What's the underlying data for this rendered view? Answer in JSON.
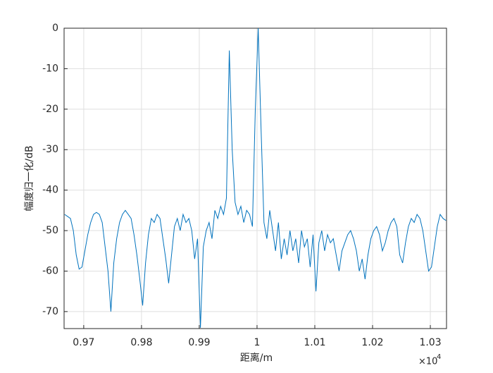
{
  "chart_data": {
    "type": "line",
    "xlabel": "距离/m",
    "ylabel": "幅度归一化/dB",
    "x_exponent": {
      "base": "×10",
      "power": "4"
    },
    "xlim": [
      9666,
      10328
    ],
    "ylim": [
      -74.2,
      0
    ],
    "xticks": [
      {
        "value": 9700,
        "label": "0.97"
      },
      {
        "value": 9800,
        "label": "0.98"
      },
      {
        "value": 9900,
        "label": "0.99"
      },
      {
        "value": 10000,
        "label": "1"
      },
      {
        "value": 10100,
        "label": "1.01"
      },
      {
        "value": 10200,
        "label": "1.02"
      },
      {
        "value": 10300,
        "label": "1.03"
      }
    ],
    "yticks": [
      0,
      -10,
      -20,
      -30,
      -40,
      -50,
      -60,
      -70
    ],
    "grid": true,
    "series": [
      {
        "color": "#0072bd",
        "x": [
          9667,
          9672,
          9677,
          9682,
          9687,
          9692,
          9697,
          9702,
          9707,
          9712,
          9717,
          9722,
          9727,
          9732,
          9737,
          9742,
          9747,
          9752,
          9757,
          9762,
          9767,
          9772,
          9777,
          9782,
          9787,
          9792,
          9797,
          9802,
          9807,
          9812,
          9817,
          9822,
          9827,
          9832,
          9837,
          9842,
          9847,
          9852,
          9857,
          9862,
          9867,
          9872,
          9877,
          9882,
          9887,
          9892,
          9897,
          9902,
          9907,
          9912,
          9917,
          9922,
          9927,
          9932,
          9937,
          9942,
          9947,
          9952,
          9957,
          9962,
          9967,
          9972,
          9977,
          9982,
          9987,
          9992,
          9997,
          10002,
          10007,
          10012,
          10017,
          10022,
          10027,
          10032,
          10037,
          10042,
          10047,
          10052,
          10057,
          10062,
          10067,
          10072,
          10077,
          10082,
          10087,
          10092,
          10097,
          10102,
          10107,
          10112,
          10117,
          10122,
          10127,
          10132,
          10137,
          10142,
          10147,
          10152,
          10157,
          10162,
          10167,
          10172,
          10177,
          10182,
          10187,
          10192,
          10197,
          10202,
          10207,
          10212,
          10217,
          10222,
          10227,
          10232,
          10237,
          10242,
          10247,
          10252,
          10257,
          10262,
          10267,
          10272,
          10277,
          10282,
          10287,
          10292,
          10297,
          10302,
          10307,
          10312,
          10317,
          10322,
          10327
        ],
        "values": [
          -46,
          -46.5,
          -47,
          -50,
          -56,
          -59.5,
          -59,
          -55,
          -51,
          -48,
          -46,
          -45.5,
          -46,
          -48,
          -54,
          -60,
          -70,
          -58,
          -52,
          -48,
          -46,
          -45,
          -46,
          -47,
          -51,
          -56,
          -62,
          -68.5,
          -58,
          -51,
          -47,
          -48,
          -46,
          -47,
          -52,
          -57,
          -63,
          -56,
          -49,
          -47,
          -50,
          -46,
          -48,
          -47,
          -50,
          -57,
          -52,
          -74,
          -54,
          -50,
          -48,
          -52,
          -45,
          -47,
          -44,
          -46,
          -42,
          -5.5,
          -30,
          -43,
          -46,
          -44,
          -48,
          -45,
          -46,
          -49,
          -20,
          0,
          -25,
          -48,
          -52,
          -45,
          -50,
          -55,
          -48,
          -57,
          -52,
          -56,
          -50,
          -55,
          -52,
          -58,
          -50,
          -54,
          -52,
          -59,
          -51,
          -65,
          -53,
          -50,
          -55,
          -51,
          -53,
          -52,
          -56,
          -60,
          -55,
          -53,
          -51,
          -50,
          -52,
          -55,
          -60,
          -57,
          -62,
          -56,
          -52,
          -50,
          -49,
          -51,
          -55,
          -53,
          -50,
          -48,
          -47,
          -49,
          -56,
          -58,
          -53,
          -49,
          -47,
          -48,
          -46,
          -47,
          -50,
          -55,
          -60,
          -59,
          -54,
          -49,
          -46,
          -47,
          -47.5
        ]
      }
    ]
  }
}
